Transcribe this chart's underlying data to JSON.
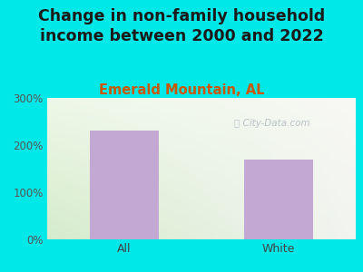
{
  "title": "Change in non-family household\nincome between 2000 and 2022",
  "subtitle": "Emerald Mountain, AL",
  "categories": [
    "All",
    "White"
  ],
  "values": [
    230,
    170
  ],
  "bar_color": "#c4a8d4",
  "background_color": "#00e8e8",
  "title_fontsize": 12.5,
  "subtitle_fontsize": 10.5,
  "subtitle_color": "#cc5500",
  "title_color": "#1a1a1a",
  "tick_label_color": "#444444",
  "axis_label_color": "#555555",
  "ylim": [
    0,
    300
  ],
  "yticks": [
    0,
    100,
    200,
    300
  ],
  "ytick_labels": [
    "0%",
    "100%",
    "200%",
    "300%"
  ],
  "watermark": "City-Data.com",
  "watermark_color": "#b0b8c0",
  "plot_bg_left": "#dff0d8",
  "plot_bg_right": "#f0f0ee"
}
